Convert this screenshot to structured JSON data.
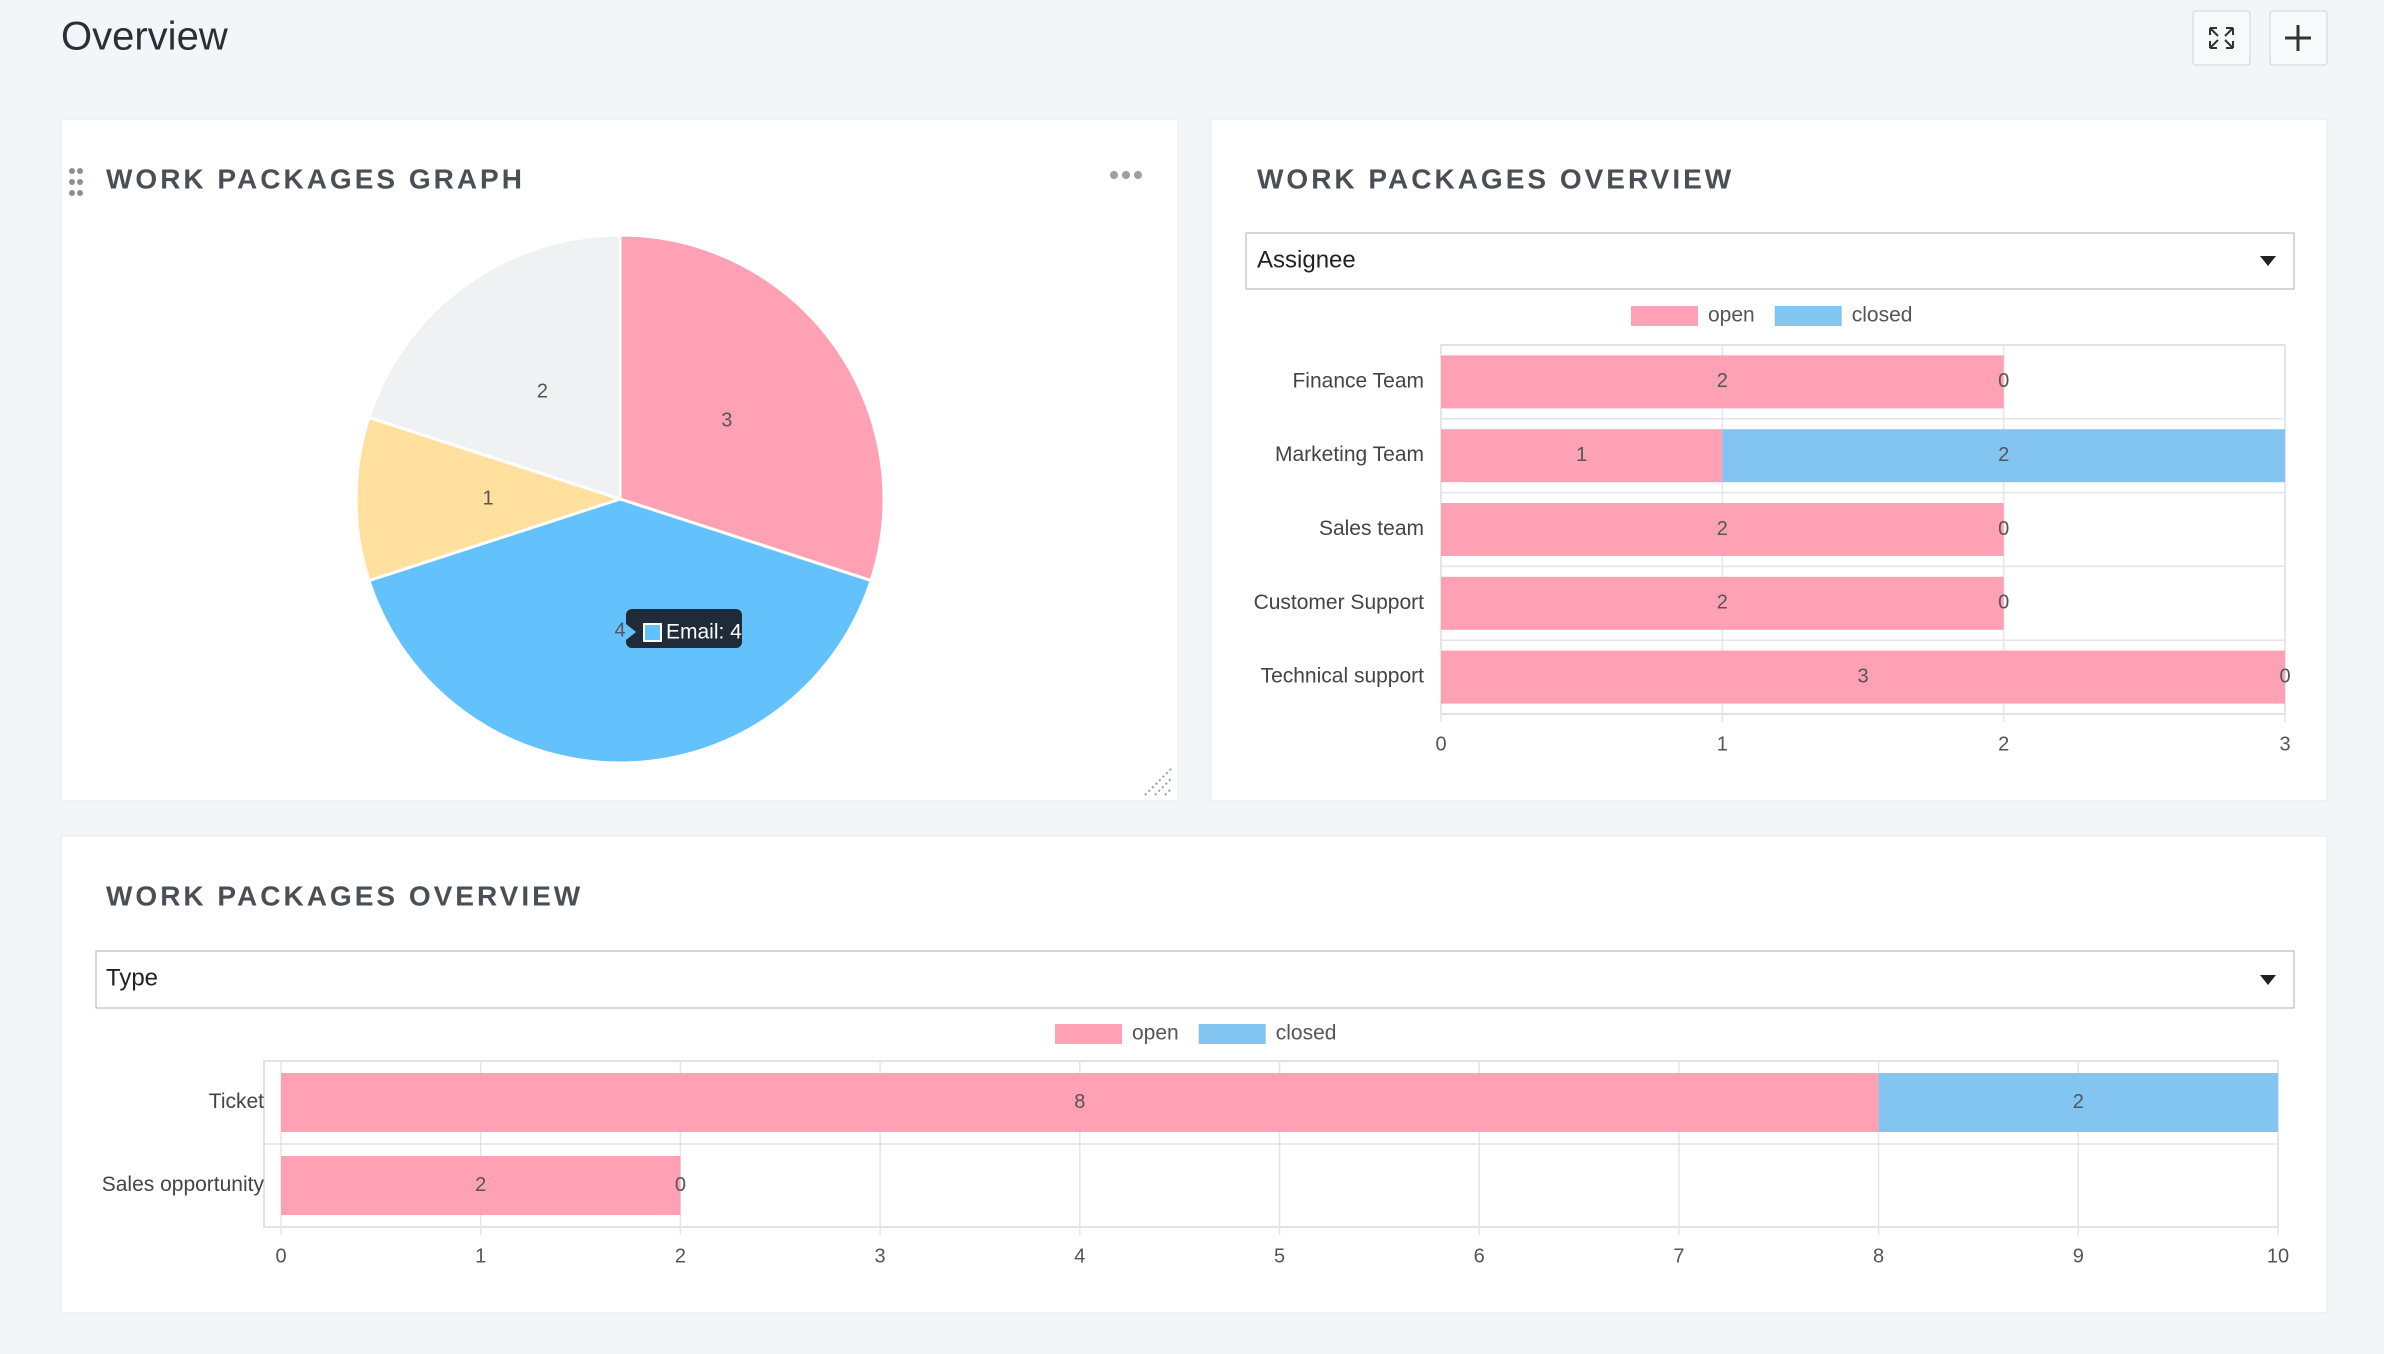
{
  "page": {
    "title": "Overview"
  },
  "chart_data": [
    {
      "type": "pie",
      "title": "WORK PACKAGES GRAPH",
      "values": [
        3,
        4,
        1,
        2
      ],
      "colors": [
        "#ffa1b5",
        "#63c1fc",
        "#ffe09f",
        "#f0f1f3"
      ],
      "tooltip": "Email: 4"
    },
    {
      "type": "hbar",
      "title": "WORK PACKAGES OVERVIEW",
      "group_by": "Assignee",
      "categories": [
        "Finance Team",
        "Marketing Team",
        "Sales team",
        "Customer Support",
        "Technical support"
      ],
      "series": [
        {
          "name": "open",
          "color": "#ffa1b5",
          "values": [
            2,
            1,
            2,
            2,
            3
          ]
        },
        {
          "name": "closed",
          "color": "#82c5f0",
          "values": [
            0,
            2,
            0,
            0,
            0
          ]
        }
      ],
      "xlim": [
        0,
        3
      ],
      "xticks": [
        0,
        1,
        2,
        3
      ],
      "grid": true,
      "stacked": true
    },
    {
      "type": "hbar",
      "title": "WORK PACKAGES OVERVIEW",
      "group_by": "Type",
      "categories": [
        "Ticket",
        "Sales opportunity"
      ],
      "series": [
        {
          "name": "open",
          "color": "#ffa1b5",
          "values": [
            8,
            2
          ]
        },
        {
          "name": "closed",
          "color": "#82c5f0",
          "values": [
            2,
            0
          ]
        }
      ],
      "xlim": [
        0,
        10
      ],
      "xticks": [
        0,
        1,
        2,
        3,
        4,
        5,
        6,
        7,
        8,
        9,
        10
      ],
      "grid": true,
      "stacked": true
    }
  ]
}
